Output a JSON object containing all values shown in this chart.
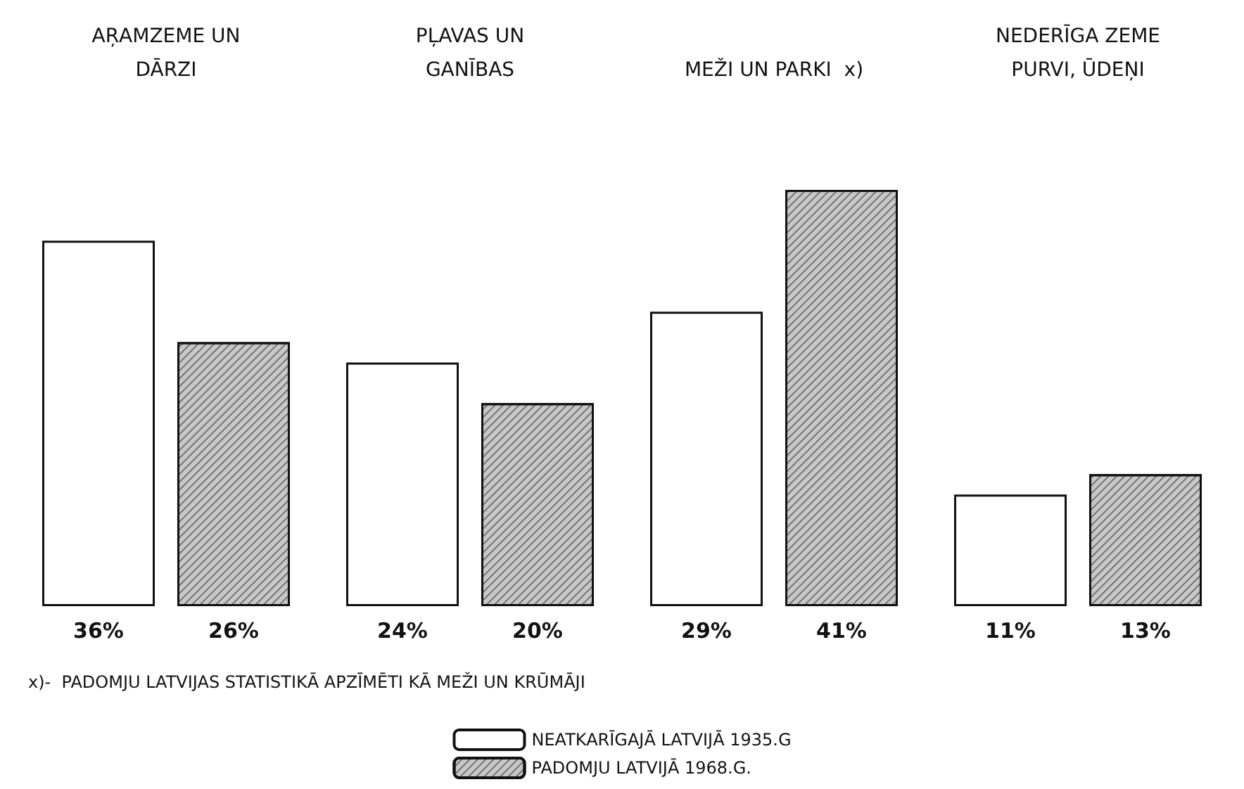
{
  "chart_data": {
    "type": "bar",
    "categories": [
      "AŖAMZEME UN\nDĀRZI",
      "PĻAVAS UN\nGANĪBAS",
      "MEŽI UN PARKI  x)",
      "NEDERĪGA ZEME\nPURVI, ŪDEŅI"
    ],
    "series": [
      {
        "name": "NEATKARĪGAJĀ LATVIJĀ 1935.G",
        "color": "#ffffff",
        "values": [
          36,
          24,
          29,
          11
        ],
        "value_labels": [
          "36%",
          "24%",
          "29%",
          "11%"
        ]
      },
      {
        "name": "PADOMJU LATVIJĀ 1968.G.",
        "color": "#c8c8c8",
        "values": [
          26,
          20,
          41,
          13
        ],
        "value_labels": [
          "26%",
          "20%",
          "41%",
          "13%"
        ]
      }
    ],
    "annotations": [
      "x)-  PADOMJU LATVIJAS STATISTIKĀ APZĪMĒTI KĀ MEŽI UN KRŪMĀJI"
    ],
    "legend": "bottom",
    "grid": false
  }
}
